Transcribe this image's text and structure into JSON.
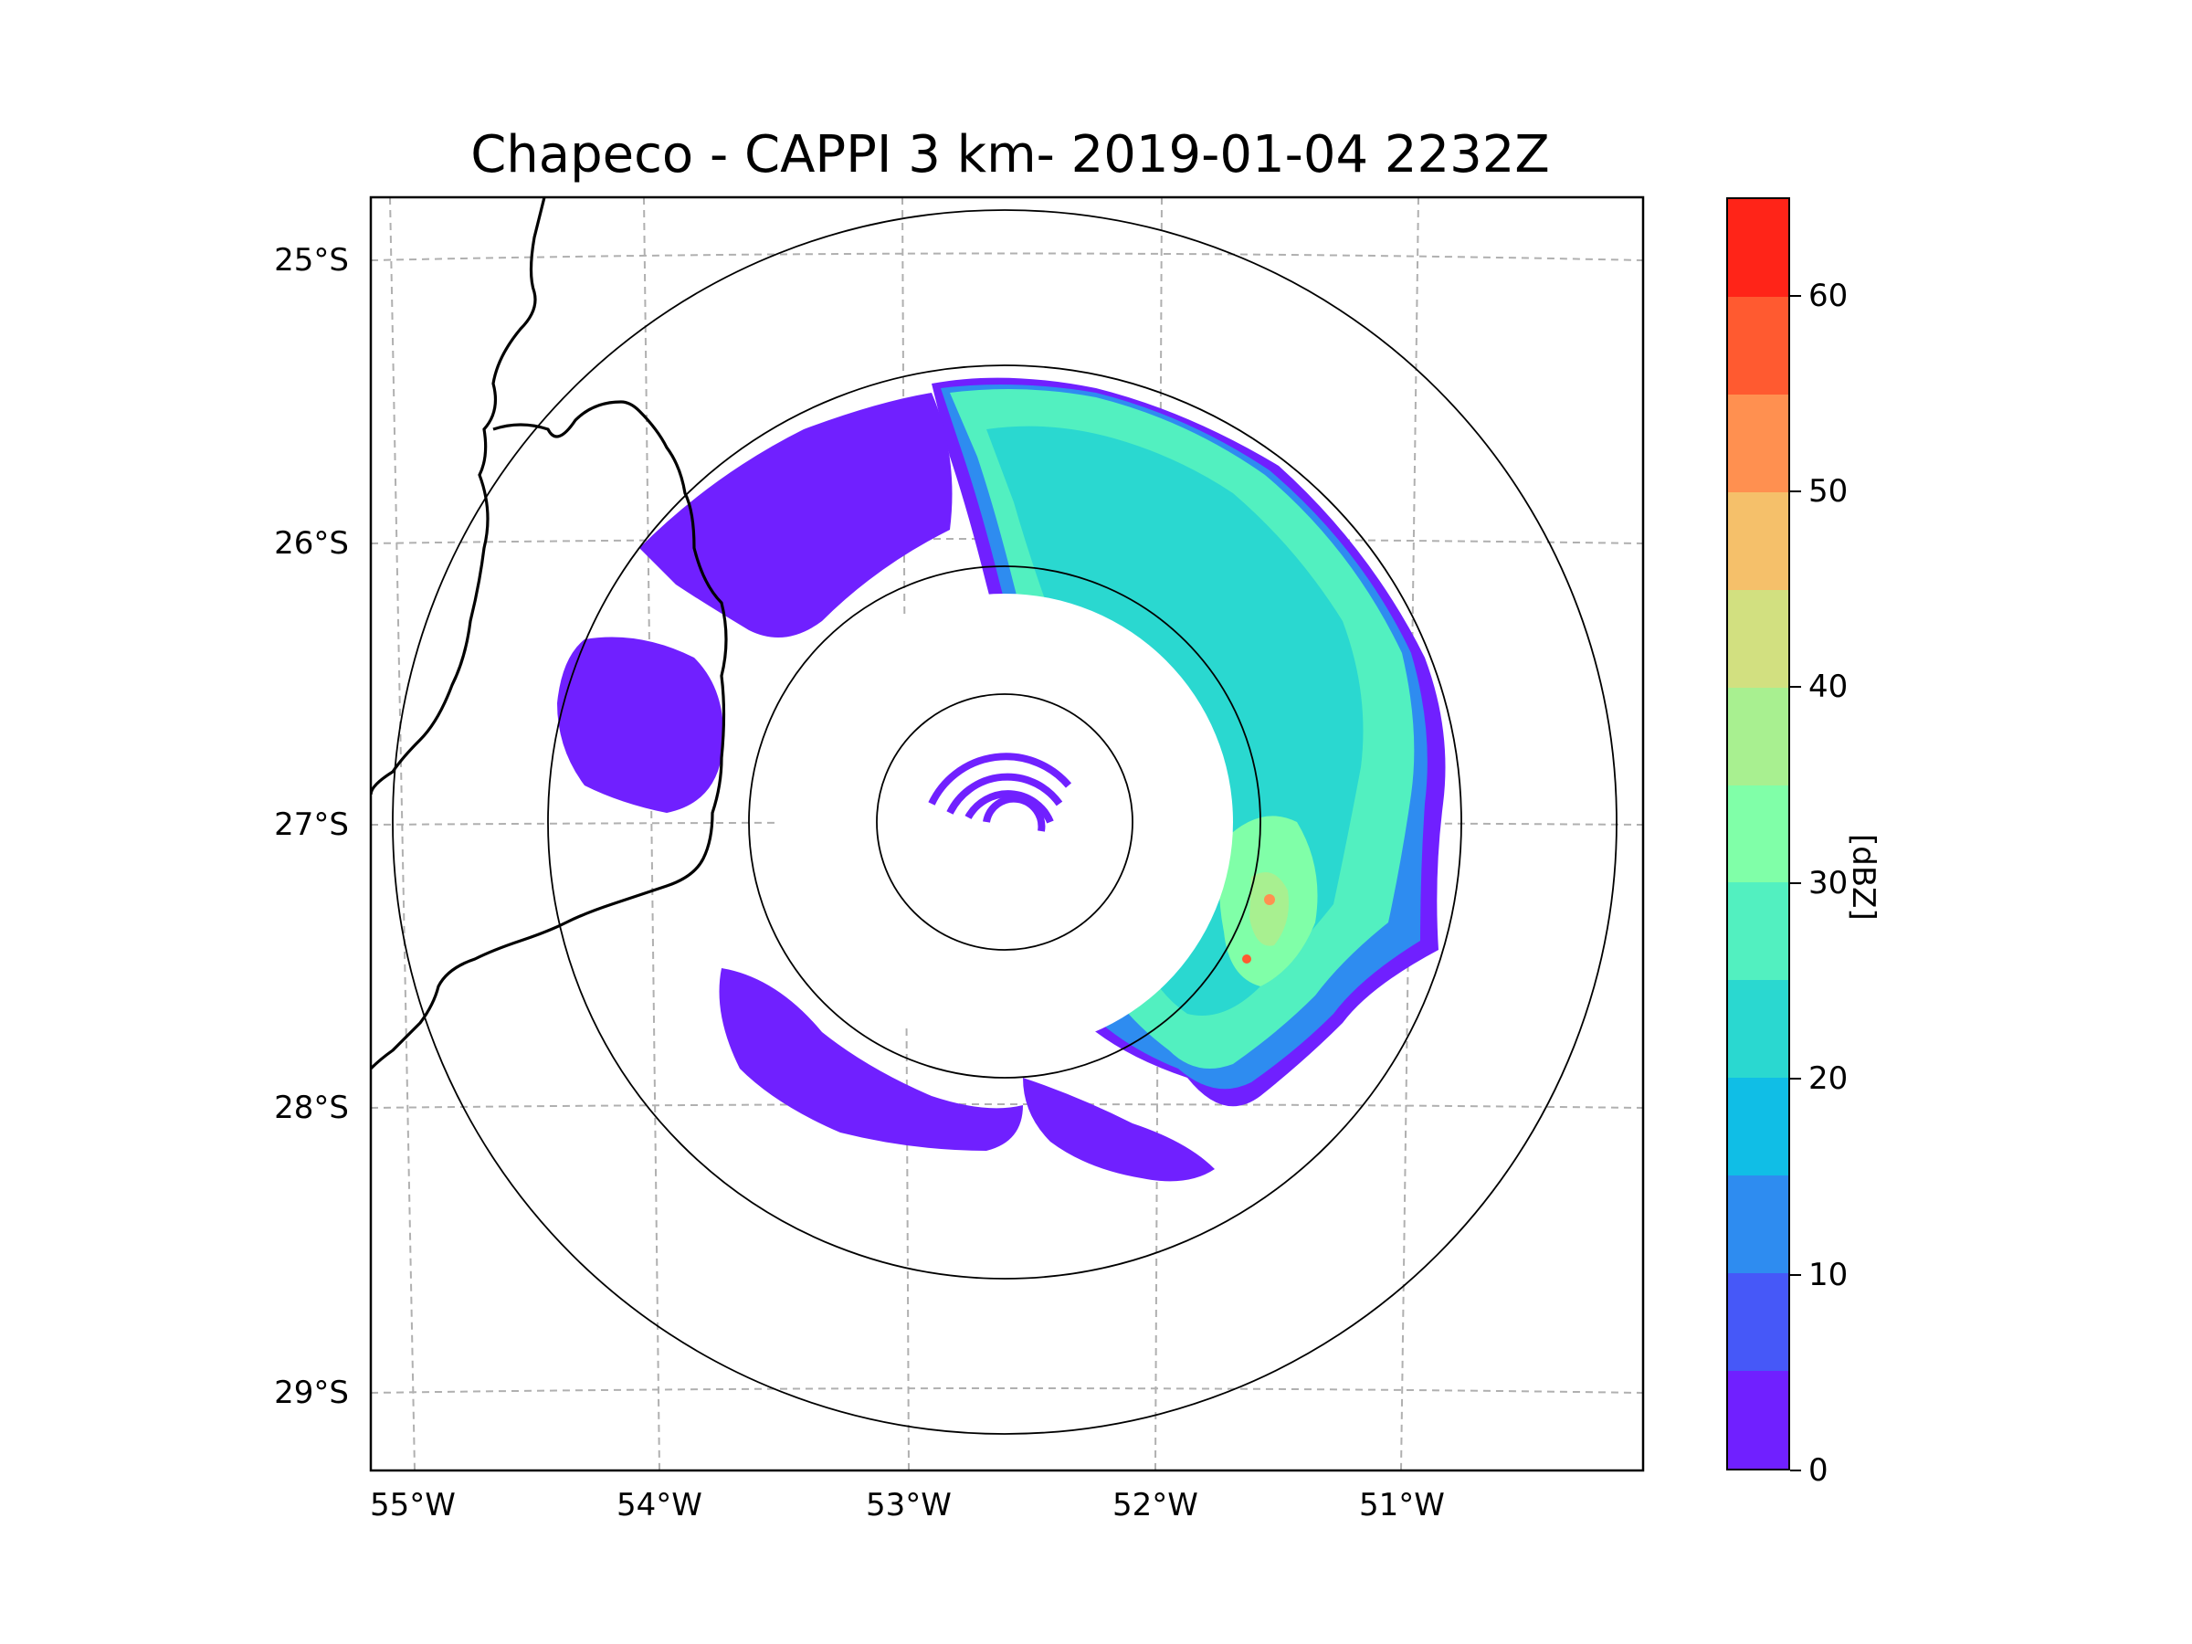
{
  "title": "Chapeco - CAPPI 3 km- 2019-01-04 2232Z",
  "map": {
    "lat_labels": [
      "25°S",
      "26°S",
      "27°S",
      "28°S",
      "29°S"
    ],
    "lon_labels": [
      "55°W",
      "54°W",
      "53°W",
      "52°W",
      "51°W"
    ],
    "radar_site": "Chapeco",
    "product": "CAPPI 3 km"
  },
  "colorbar": {
    "label": "[dBZ]",
    "tick_labels": [
      "0",
      "10",
      "20",
      "30",
      "40",
      "50",
      "60"
    ],
    "levels": [
      0,
      5,
      10,
      15,
      20,
      25,
      30,
      35,
      40,
      45,
      50,
      55,
      60,
      65
    ],
    "colors": [
      "#7020ff",
      "#4658f8",
      "#2e8cf0",
      "#10bee6",
      "#2ad8d0",
      "#52f0c0",
      "#80ffa8",
      "#a8f090",
      "#d2e080",
      "#f5c06a",
      "#ff9050",
      "#ff5a30",
      "#ff2418"
    ]
  },
  "palette": {
    "reflectivity_low": "#7020ff",
    "reflectivity_mid": "#52f0c0",
    "reflectivity_high": "#ff5a30"
  }
}
